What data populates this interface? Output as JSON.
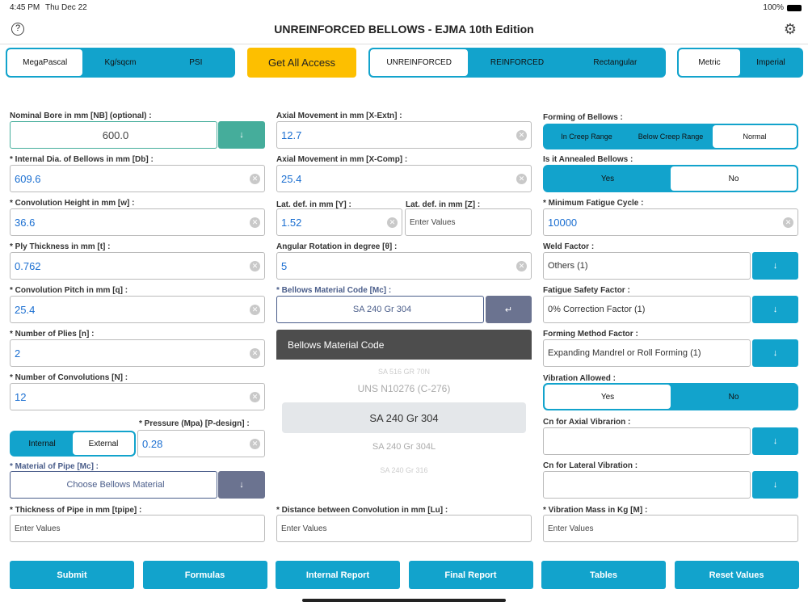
{
  "status": {
    "time": "4:45 PM",
    "date": "Thu Dec 22",
    "battery": "100%"
  },
  "header": {
    "title": "UNREINFORCED BELLOWS - EJMA 10th Edition"
  },
  "units": [
    "MegaPascal",
    "Kg/sqcm",
    "PSI"
  ],
  "access": "Get All Access",
  "types": [
    "UNREINFORCED",
    "REINFORCED",
    "Rectangular"
  ],
  "systems": [
    "Metric",
    "Imperial"
  ],
  "left": {
    "nb_label": "Nominal Bore in mm [NB] (optional) :",
    "nb_value": "600.0",
    "fields": [
      {
        "label": "* Internal Dia. of Bellows in mm [Db] :",
        "value": "609.6"
      },
      {
        "label": "* Convolution Height in mm [w] :",
        "value": "36.6"
      },
      {
        "label": "* Ply Thickness in mm [t] :",
        "value": "0.762"
      },
      {
        "label": "* Convolution Pitch in mm [q] :",
        "value": "25.4"
      },
      {
        "label": "* Number of Plies [n] :",
        "value": "2"
      },
      {
        "label": "* Number of Convolutions [N] :",
        "value": "12"
      }
    ],
    "pressure_label": "* Pressure (Mpa) [P-design] :",
    "pressure_value": "0.28",
    "pressure_type": [
      "Internal",
      "External"
    ],
    "material_label": "* Material of Pipe [Mc] :",
    "material_value": "Choose Bellows Material",
    "thickness_label": "* Thickness of Pipe in mm [tpipe] :",
    "thickness_placeholder": "Enter Values"
  },
  "middle": {
    "fields": [
      {
        "label": "Axial Movement in mm [X-Extn] :",
        "value": "12.7"
      },
      {
        "label": "Axial Movement in mm [X-Comp] :",
        "value": "25.4"
      }
    ],
    "laty_label": "Lat. def. in mm [Y] :",
    "laty_value": "1.52",
    "latz_label": "Lat. def. in mm [Z] :",
    "latz_placeholder": "Enter Values",
    "ang_label": "Angular Rotation in degree [θ] :",
    "ang_value": "5",
    "mc_label": "* Bellows Material Code [Mc] :",
    "mc_value": "SA 240 Gr 304",
    "picker_title": "Bellows Material Code",
    "picker_items": [
      "SA 516 GR 70N",
      "UNS N10276 (C-276)",
      "SA 240 Gr 304",
      "SA 240 Gr 304L",
      "SA 240 Gr 316"
    ],
    "lu_label": "* Distance between Convolution in mm [Lu] :",
    "lu_placeholder": "Enter Values"
  },
  "right": {
    "forming_label": "Forming of Bellows :",
    "forming": [
      "In Creep Range",
      "Below Creep Range",
      "Normal"
    ],
    "annealed_label": "Is it Annealed Bellows :",
    "annealed": [
      "Yes",
      "No"
    ],
    "fatigue_label": "* Minimum Fatigue Cycle :",
    "fatigue_value": "10000",
    "dropdowns": [
      {
        "label": "Weld Factor :",
        "value": "Others (1)"
      },
      {
        "label": "Fatigue Safety Factor :",
        "value": "0% Correction Factor (1)"
      },
      {
        "label": "Forming Method Factor :",
        "value": "Expanding Mandrel or Roll Forming (1)"
      }
    ],
    "vib_label": "Vibration Allowed :",
    "vib": [
      "Yes",
      "No"
    ],
    "cn_axial_label": "Cn for Axial Vibrarion :",
    "cn_lateral_label": "Cn for Lateral Vibration :",
    "mass_label": "* Vibration Mass in Kg [M] :",
    "mass_placeholder": "Enter Values"
  },
  "footer": [
    "Submit",
    "Formulas",
    "Internal Report",
    "Final Report",
    "Tables",
    "Reset Values"
  ],
  "colors": {
    "blue": "#12a3cc",
    "teal": "#45ad9b",
    "slate": "#6b7390",
    "yellow": "#fdbf00"
  }
}
